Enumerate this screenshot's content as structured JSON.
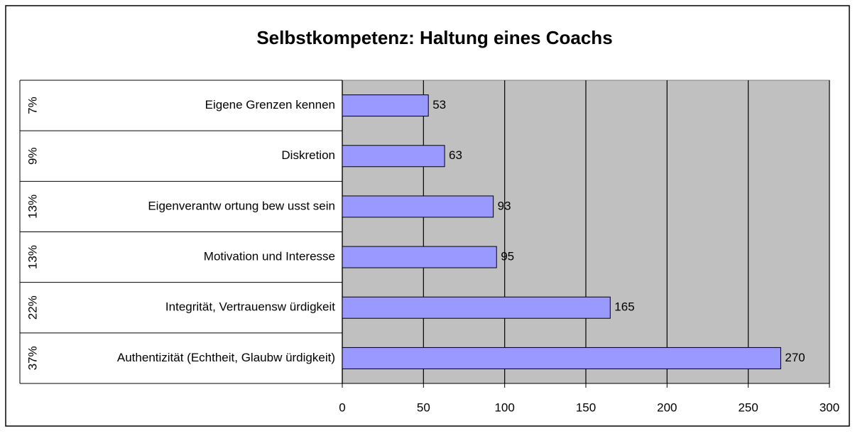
{
  "chart_data": {
    "type": "bar",
    "orientation": "horizontal",
    "title": "Selbstkompetenz: Haltung eines Coachs",
    "categories": [
      "Eigene Grenzen kennen",
      "Diskretion",
      "Eigenverantw ortung bew usst sein",
      "Motivation und Interesse",
      "Integrität, Vertrauensw ürdigkeit",
      "Authentizität (Echtheit, Glaubw ürdigkeit)"
    ],
    "row_labels": [
      "7%",
      "9%",
      "13%",
      "13%",
      "22%",
      "37%"
    ],
    "values": [
      53,
      63,
      93,
      95,
      165,
      270
    ],
    "color": "#9999ff",
    "xlim": [
      0,
      300
    ],
    "xticks": [
      0,
      50,
      100,
      150,
      200,
      250,
      300
    ],
    "grid": true
  }
}
